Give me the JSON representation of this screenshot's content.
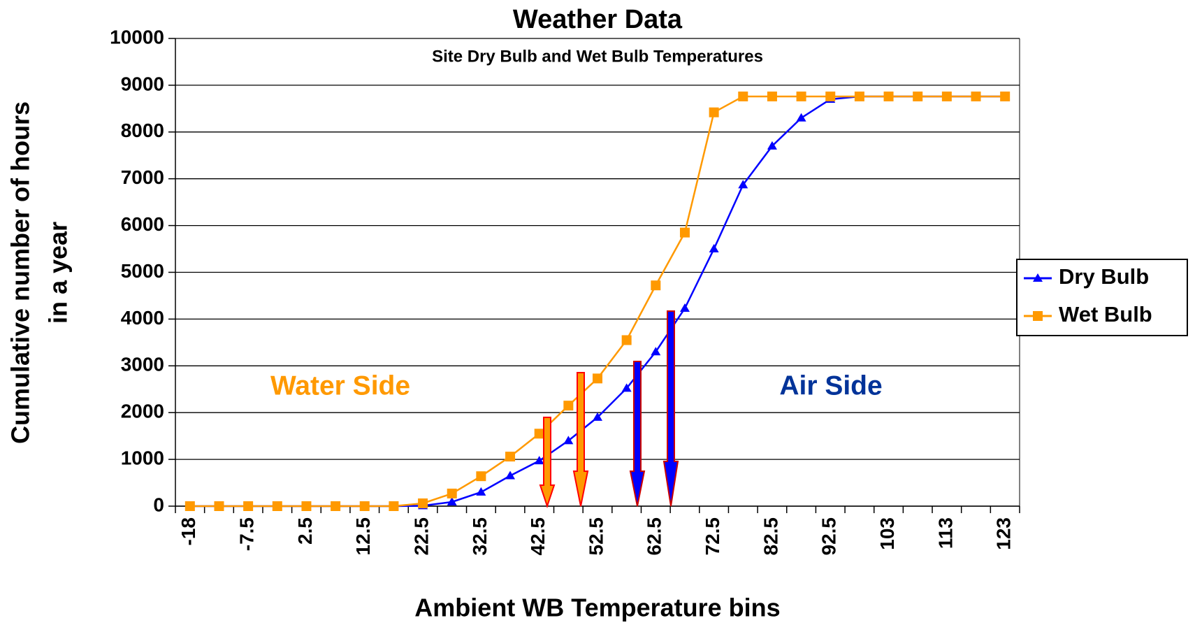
{
  "chart_data": {
    "type": "line",
    "title": "Weather Data",
    "subtitle": "Site Dry Bulb and Wet Bulb Temperatures",
    "x_label": "Ambient WB Temperature bins",
    "y_label": [
      "Cumulative number of hours",
      "in a year"
    ],
    "annotations": [
      "Water Side",
      "Air Side"
    ],
    "categories": [
      "-18",
      null,
      "-7.5",
      null,
      "2.5",
      null,
      "12.5",
      null,
      "22.5",
      null,
      "32.5",
      null,
      "42.5",
      null,
      "52.5",
      null,
      "62.5",
      null,
      "72.5",
      null,
      "82.5",
      null,
      "92.5",
      null,
      "103",
      null,
      "113",
      null,
      "123"
    ],
    "series": [
      {
        "name": "Dry Bulb",
        "color": "#0000ff",
        "marker": "triangle",
        "values": [
          0,
          0,
          0,
          0,
          0,
          0,
          0,
          0,
          10,
          90,
          300,
          650,
          970,
          1400,
          1900,
          2520,
          3300,
          4230,
          5500,
          6870,
          7700,
          8300,
          8700,
          8760,
          8760,
          8760,
          8760,
          8760,
          8760
        ]
      },
      {
        "name": "Wet Bulb",
        "color": "#ff9900",
        "marker": "square",
        "values": [
          0,
          0,
          0,
          0,
          0,
          0,
          0,
          0,
          60,
          270,
          640,
          1060,
          1550,
          2150,
          2730,
          3550,
          4720,
          5850,
          8420,
          8760,
          8760,
          8760,
          8760,
          8760,
          8760,
          8760,
          8760,
          8760,
          8760
        ]
      }
    ],
    "ylim": [
      0,
      10000
    ],
    "yticks": [
      0,
      1000,
      2000,
      3000,
      4000,
      5000,
      6000,
      7000,
      8000,
      9000,
      10000
    ],
    "grid": true,
    "legend": "right"
  }
}
